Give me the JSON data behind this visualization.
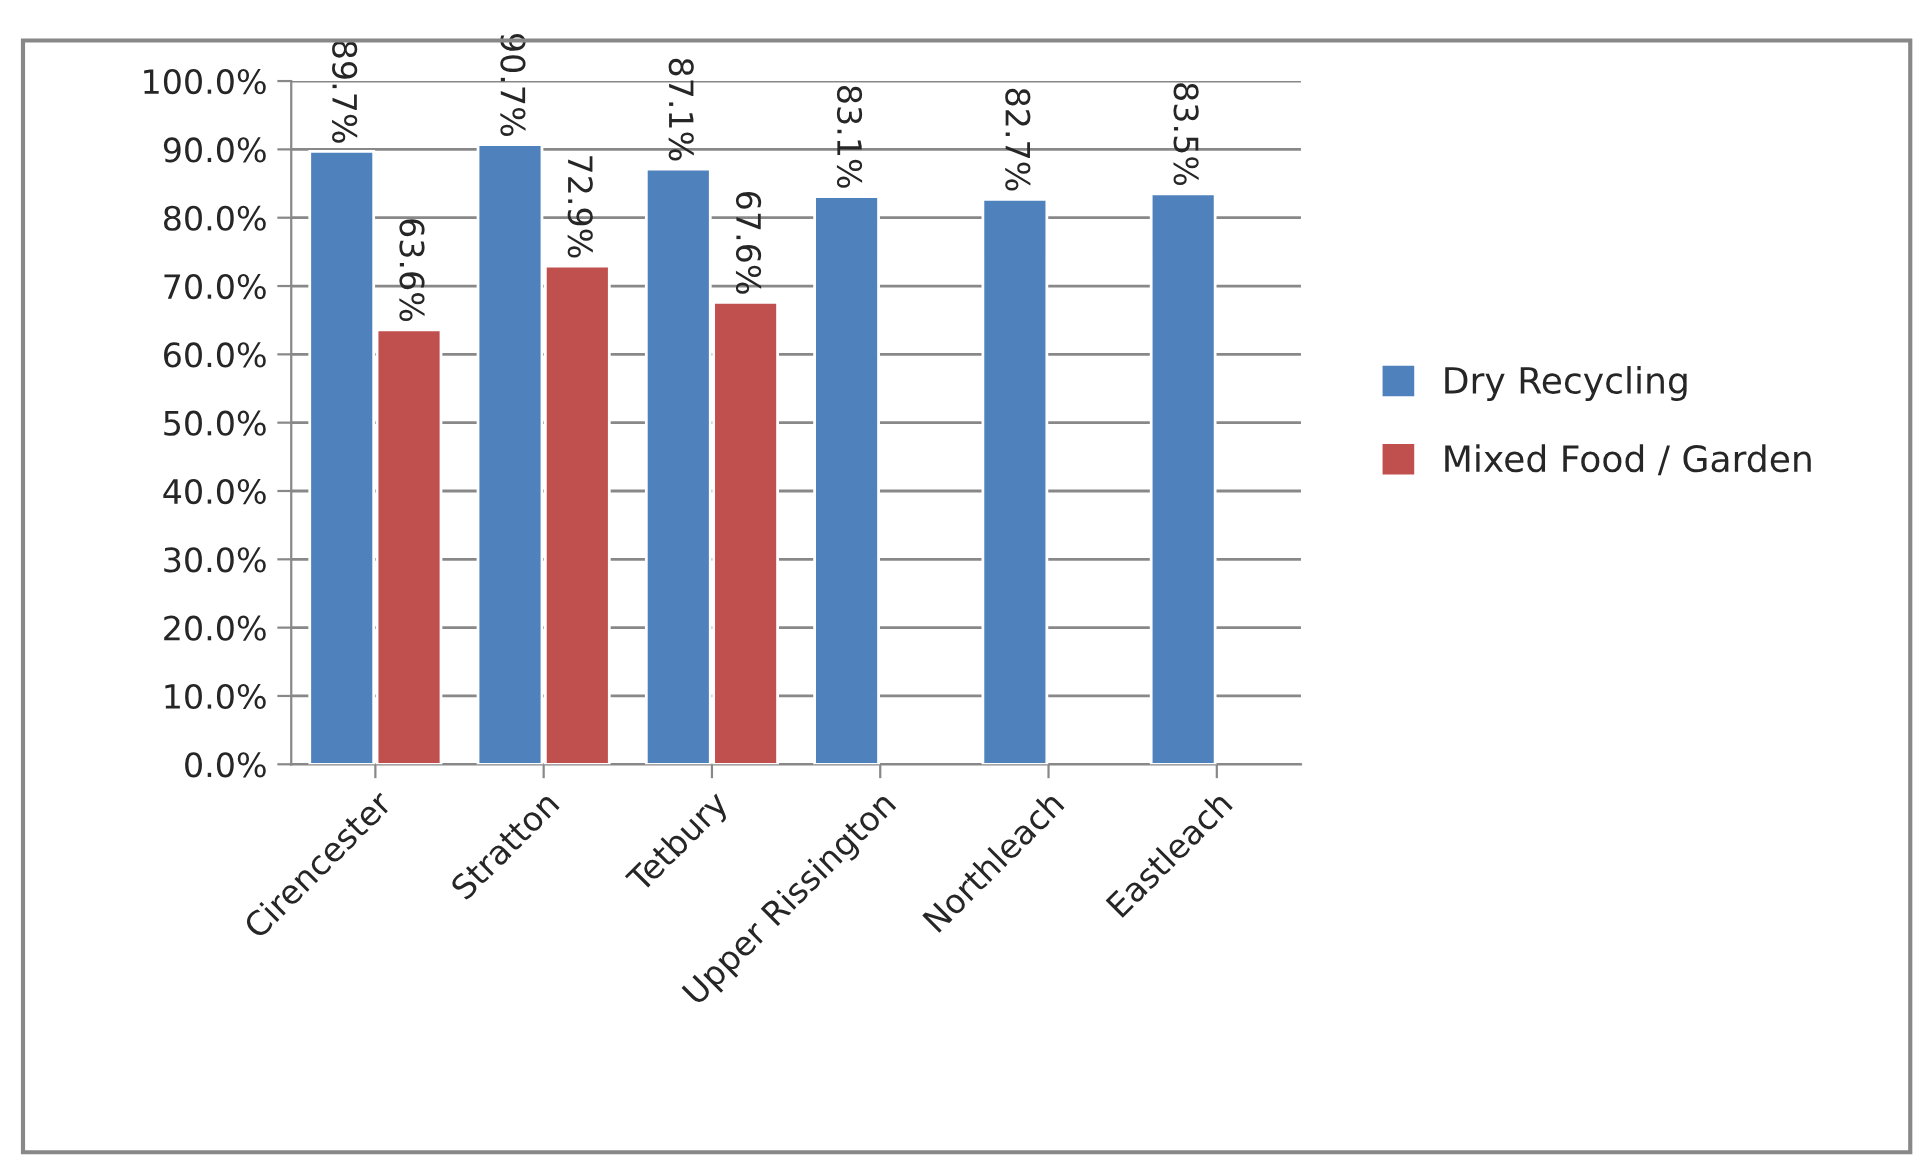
{
  "chart_data": {
    "type": "bar",
    "categories": [
      "Cirencester",
      "Stratton",
      "Tetbury",
      "Upper Rissington",
      "Northleach",
      "Eastleach"
    ],
    "series": [
      {
        "name": "Dry Recycling",
        "color": "#4f81bd",
        "values": [
          89.7,
          90.7,
          87.1,
          83.1,
          82.7,
          83.5
        ],
        "value_labels": [
          "89.7%",
          "90.7%",
          "87.1%",
          "83.1%",
          "82.7%",
          "83.5%"
        ]
      },
      {
        "name": "Mixed Food / Garden",
        "color": "#c0504d",
        "values": [
          63.6,
          72.9,
          67.6,
          null,
          null,
          null
        ],
        "value_labels": [
          "63.6%",
          "72.9%",
          "67.6%",
          null,
          null,
          null
        ]
      }
    ],
    "ylim": [
      0,
      100
    ],
    "yticks": [
      {
        "value": 0,
        "label": "0.0%"
      },
      {
        "value": 10,
        "label": "10.0%"
      },
      {
        "value": 20,
        "label": "20.0%"
      },
      {
        "value": 30,
        "label": "30.0%"
      },
      {
        "value": 40,
        "label": "40.0%"
      },
      {
        "value": 50,
        "label": "50.0%"
      },
      {
        "value": 60,
        "label": "60.0%"
      },
      {
        "value": 70,
        "label": "70.0%"
      },
      {
        "value": 80,
        "label": "80.0%"
      },
      {
        "value": 90,
        "label": "90.0%"
      },
      {
        "value": 100,
        "label": "100.0%"
      }
    ],
    "grid": "y",
    "legend": "right"
  }
}
